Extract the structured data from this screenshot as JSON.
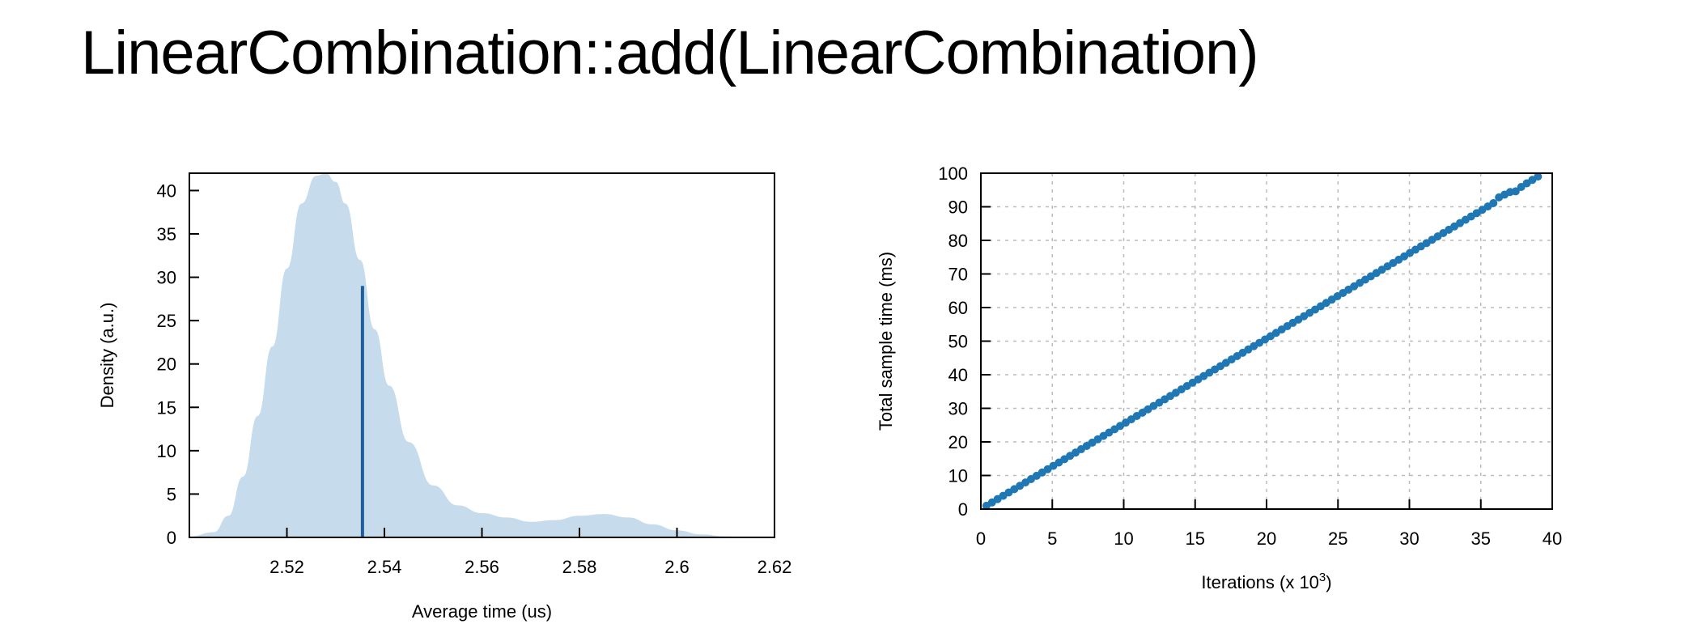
{
  "page": {
    "title": "LinearCombination::add(LinearCombination)"
  },
  "chart_data": [
    {
      "type": "area",
      "xlabel": "Average time (us)",
      "ylabel": "Density (a.u.)",
      "xlim": [
        2.5,
        2.62
      ],
      "ylim": [
        0,
        42
      ],
      "xticks": [
        2.52,
        2.54,
        2.56,
        2.58,
        2.6,
        2.62
      ],
      "xtick_labels": [
        "2.52",
        "2.54",
        "2.56",
        "2.58",
        "2.6",
        "2.62"
      ],
      "yticks": [
        0,
        5,
        10,
        15,
        20,
        25,
        30,
        35,
        40
      ],
      "ytick_labels": [
        "0",
        "5",
        "10",
        "15",
        "20",
        "25",
        "30",
        "35",
        "40"
      ],
      "grid": false,
      "colors": {
        "fill": "#c6dbec",
        "line": "#1f5f9c"
      },
      "density": {
        "x": [
          2.5,
          2.505,
          2.508,
          2.511,
          2.514,
          2.517,
          2.52,
          2.523,
          2.526,
          2.528,
          2.53,
          2.532,
          2.535,
          2.538,
          2.541,
          2.545,
          2.55,
          2.555,
          2.56,
          2.565,
          2.57,
          2.575,
          2.58,
          2.585,
          2.59,
          2.595,
          2.6,
          2.605,
          2.61,
          2.615,
          2.62
        ],
        "y": [
          0.1,
          0.6,
          2.5,
          7,
          14,
          22,
          31,
          38.5,
          41.7,
          42,
          41,
          38.5,
          32,
          24,
          17.5,
          11,
          6,
          3.7,
          2.8,
          2.3,
          1.8,
          2.0,
          2.5,
          2.7,
          2.3,
          1.5,
          0.8,
          0.35,
          0.12,
          0.03,
          0
        ]
      },
      "mean_marker": {
        "x": 2.5355,
        "y": 29
      }
    },
    {
      "type": "scatter",
      "xlabel": "Iterations (x 10",
      "xlabel_sup": "3",
      "xlabel_suffix": ")",
      "ylabel": "Total sample time (ms)",
      "xlim": [
        0,
        40
      ],
      "ylim": [
        0,
        100
      ],
      "xticks": [
        0,
        5,
        10,
        15,
        20,
        25,
        30,
        35,
        40
      ],
      "xtick_labels": [
        "0",
        "5",
        "10",
        "15",
        "20",
        "25",
        "30",
        "35",
        "40"
      ],
      "yticks": [
        0,
        10,
        20,
        30,
        40,
        50,
        60,
        70,
        80,
        90,
        100
      ],
      "ytick_labels": [
        "0",
        "10",
        "20",
        "30",
        "40",
        "50",
        "60",
        "70",
        "80",
        "90",
        "100"
      ],
      "grid": true,
      "colors": {
        "point": "#1f77b4",
        "grid": "#bbbbbb"
      },
      "points": {
        "x": [
          0.39,
          0.78,
          1.17,
          1.56,
          1.95,
          2.34,
          2.73,
          3.12,
          3.51,
          3.9,
          4.29,
          4.68,
          5.07,
          5.46,
          5.85,
          6.24,
          6.63,
          7.02,
          7.41,
          7.8,
          8.19,
          8.58,
          8.97,
          9.36,
          9.75,
          10.14,
          10.53,
          10.92,
          11.31,
          11.7,
          12.09,
          12.48,
          12.87,
          13.26,
          13.65,
          14.04,
          14.43,
          14.82,
          15.21,
          15.6,
          15.99,
          16.38,
          16.77,
          17.16,
          17.55,
          17.94,
          18.33,
          18.72,
          19.11,
          19.5,
          19.89,
          20.28,
          20.67,
          21.06,
          21.45,
          21.84,
          22.23,
          22.62,
          23.01,
          23.4,
          23.79,
          24.18,
          24.57,
          24.96,
          25.35,
          25.74,
          26.13,
          26.52,
          26.91,
          27.3,
          27.69,
          28.08,
          28.47,
          28.86,
          29.25,
          29.64,
          30.03,
          30.42,
          30.81,
          31.2,
          31.59,
          31.98,
          32.37,
          32.76,
          33.15,
          33.54,
          33.93,
          34.32,
          34.71,
          35.1,
          35.49,
          35.88,
          36.27,
          36.66,
          37.05,
          37.44,
          37.83,
          38.22,
          38.61,
          39.0
        ],
        "y": [
          0.99,
          1.98,
          2.97,
          3.96,
          4.95,
          5.94,
          6.93,
          7.92,
          8.91,
          9.9,
          10.89,
          11.88,
          12.87,
          13.86,
          14.85,
          15.84,
          16.83,
          17.82,
          18.81,
          19.8,
          20.79,
          21.78,
          22.77,
          23.76,
          24.75,
          25.74,
          26.73,
          27.72,
          28.71,
          29.7,
          30.69,
          31.68,
          32.67,
          33.66,
          34.65,
          35.64,
          36.63,
          37.62,
          38.61,
          39.6,
          40.59,
          41.58,
          42.57,
          43.56,
          44.55,
          45.54,
          46.53,
          47.52,
          48.51,
          49.5,
          50.49,
          51.48,
          52.47,
          53.46,
          54.45,
          55.44,
          56.43,
          57.42,
          58.41,
          59.4,
          60.39,
          61.38,
          62.37,
          63.36,
          64.35,
          65.34,
          66.33,
          67.32,
          68.31,
          69.3,
          70.29,
          71.28,
          72.27,
          73.26,
          74.25,
          75.24,
          76.23,
          77.22,
          78.21,
          79.2,
          80.19,
          81.18,
          82.17,
          83.16,
          84.15,
          85.14,
          86.13,
          87.12,
          88.11,
          89.1,
          90.09,
          91.08,
          92.8,
          93.6,
          94.4,
          94.6,
          95.9,
          97.0,
          98.0,
          99.0
        ]
      }
    }
  ]
}
